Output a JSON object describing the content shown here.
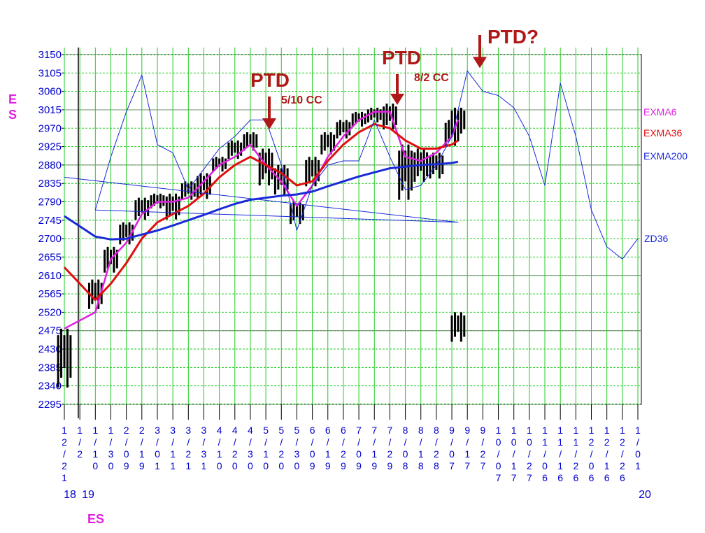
{
  "chart_data": {
    "type": "line",
    "symbol": "ES",
    "y_label": "ES",
    "footer_label": "ES",
    "ylim": [
      2295,
      3150
    ],
    "y_ticks": [
      3150,
      3105,
      3060,
      3015,
      2970,
      2925,
      2880,
      2835,
      2790,
      2745,
      2700,
      2655,
      2610,
      2565,
      2520,
      2475,
      2430,
      2385,
      2340,
      2295
    ],
    "x_ticks": [
      "12/21",
      "1/2",
      "1/10",
      "1/30",
      "2/09",
      "2/19",
      "3/01",
      "3/11",
      "3/21",
      "3/31",
      "4/10",
      "4/20",
      "4/30",
      "5/10",
      "5/20",
      "5/30",
      "6/09",
      "6/19",
      "6/29",
      "7/09",
      "7/19",
      "7/29",
      "8/08",
      "8/18",
      "8/28",
      "9/07",
      "9/17",
      "9/27",
      "10/07",
      "10/17",
      "10/27",
      "11/06",
      "11/16",
      "11/26",
      "12/06",
      "12/16",
      "12/26",
      "1/01"
    ],
    "year_labels": [
      "18",
      "19",
      "20"
    ],
    "grid": true,
    "legend_position": "right",
    "series": [
      {
        "name": "EXMA6",
        "color": "#e020e0",
        "x": [
          "12/21",
          "1/10",
          "1/30",
          "2/09",
          "2/19",
          "3/01",
          "3/11",
          "3/21",
          "3/31",
          "4/10",
          "4/20",
          "4/30",
          "5/10",
          "5/20",
          "5/30",
          "6/09",
          "6/19",
          "6/29",
          "7/09",
          "7/19",
          "7/29",
          "8/08",
          "8/18",
          "8/28",
          "9/07",
          "9/11"
        ],
        "values": [
          2480,
          2520,
          2650,
          2690,
          2760,
          2790,
          2790,
          2800,
          2840,
          2880,
          2900,
          2930,
          2880,
          2840,
          2780,
          2830,
          2900,
          2950,
          2990,
          3010,
          3010,
          2900,
          2890,
          2910,
          2950,
          2990
        ]
      },
      {
        "name": "EXMA36",
        "color": "#e01010",
        "x": [
          "12/21",
          "1/10",
          "1/30",
          "2/09",
          "2/19",
          "3/01",
          "3/11",
          "3/21",
          "3/31",
          "4/10",
          "4/20",
          "4/30",
          "5/10",
          "5/20",
          "5/30",
          "6/09",
          "6/19",
          "6/29",
          "7/09",
          "7/19",
          "7/29",
          "8/08",
          "8/18",
          "8/28",
          "9/07",
          "9/11"
        ],
        "values": [
          2630,
          2550,
          2590,
          2640,
          2700,
          2740,
          2760,
          2780,
          2810,
          2850,
          2880,
          2900,
          2880,
          2860,
          2830,
          2840,
          2890,
          2930,
          2960,
          2980,
          2970,
          2940,
          2920,
          2920,
          2930,
          2940
        ]
      },
      {
        "name": "EXMA200",
        "color": "#1a2ad8",
        "x": [
          "12/21",
          "1/10",
          "1/30",
          "2/09",
          "2/19",
          "3/01",
          "3/11",
          "3/21",
          "3/31",
          "4/10",
          "4/20",
          "4/30",
          "5/10",
          "5/20",
          "5/30",
          "6/09",
          "6/19",
          "6/29",
          "7/09",
          "7/19",
          "7/29",
          "8/08",
          "8/18",
          "8/28",
          "9/07",
          "9/11"
        ],
        "values": [
          2755,
          2705,
          2698,
          2700,
          2710,
          2720,
          2732,
          2745,
          2758,
          2772,
          2785,
          2795,
          2800,
          2805,
          2808,
          2815,
          2828,
          2840,
          2852,
          2862,
          2872,
          2876,
          2880,
          2882,
          2885,
          2888
        ]
      },
      {
        "name": "ZD36",
        "color": "#1a2ad8",
        "x": [
          "12/21",
          "1/02",
          "1/10",
          "1/30",
          "2/09",
          "2/19",
          "3/01",
          "3/11",
          "3/21",
          "3/31",
          "4/10",
          "4/20",
          "4/30",
          "5/10",
          "5/20",
          "5/30",
          "6/09",
          "6/19",
          "6/29",
          "7/09",
          "7/19",
          "7/29",
          "8/08",
          "8/18",
          "8/28",
          "9/07",
          "9/17",
          "9/27",
          "10/07",
          "10/17",
          "10/27",
          "11/06",
          "11/16",
          "11/26",
          "12/06",
          "12/16",
          "12/26",
          "1/01"
        ],
        "values": [
          2850,
          2740,
          2770,
          2900,
          3010,
          3100,
          2930,
          2910,
          2820,
          2870,
          2920,
          2950,
          2990,
          2990,
          2880,
          2720,
          2830,
          2880,
          2890,
          2890,
          2990,
          2900,
          2820,
          2830,
          2880,
          2950,
          3110,
          3060,
          3050,
          3020,
          2950,
          2830,
          3080,
          2950,
          2770,
          2680,
          2650,
          2700
        ]
      }
    ],
    "price_bars": [
      {
        "x": "12/21",
        "low": 2320,
        "high": 2480
      },
      {
        "x": "1/02",
        "low": 2440,
        "high": 2520
      },
      {
        "x": "1/10",
        "low": 2520,
        "high": 2600
      },
      {
        "x": "1/30",
        "low": 2610,
        "high": 2680
      },
      {
        "x": "2/09",
        "low": 2680,
        "high": 2740
      },
      {
        "x": "2/19",
        "low": 2740,
        "high": 2800
      },
      {
        "x": "3/01",
        "low": 2770,
        "high": 2810
      },
      {
        "x": "3/11",
        "low": 2740,
        "high": 2810
      },
      {
        "x": "3/21",
        "low": 2790,
        "high": 2840
      },
      {
        "x": "3/31",
        "low": 2790,
        "high": 2860
      },
      {
        "x": "4/10",
        "low": 2860,
        "high": 2900
      },
      {
        "x": "4/20",
        "low": 2890,
        "high": 2940
      },
      {
        "x": "4/30",
        "low": 2910,
        "high": 2960
      },
      {
        "x": "5/10",
        "low": 2820,
        "high": 2920
      },
      {
        "x": "5/20",
        "low": 2800,
        "high": 2880
      },
      {
        "x": "5/30",
        "low": 2730,
        "high": 2790
      },
      {
        "x": "6/09",
        "low": 2820,
        "high": 2900
      },
      {
        "x": "6/19",
        "low": 2900,
        "high": 2960
      },
      {
        "x": "6/29",
        "low": 2940,
        "high": 2990
      },
      {
        "x": "7/09",
        "low": 2970,
        "high": 3010
      },
      {
        "x": "7/19",
        "low": 2980,
        "high": 3020
      },
      {
        "x": "7/29",
        "low": 2960,
        "high": 3030
      },
      {
        "x": "8/08",
        "low": 2780,
        "high": 2930
      },
      {
        "x": "8/18",
        "low": 2830,
        "high": 2920
      },
      {
        "x": "8/28",
        "low": 2840,
        "high": 2910
      },
      {
        "x": "9/07",
        "low": 2920,
        "high": 2990
      },
      {
        "x": "9/11",
        "low": 2950,
        "high": 3020
      }
    ],
    "annotations": [
      {
        "text": "PTD",
        "secondary": "5/10 CC",
        "x": "4/30",
        "arrow_to": 2960
      },
      {
        "text": "PTD",
        "secondary": "8/2 CC",
        "x": "7/29",
        "arrow_to": 3020
      },
      {
        "text": "PTD?",
        "secondary": "",
        "x": "9/17",
        "arrow_to": 3110
      }
    ],
    "legend": [
      "EXMA6",
      "EXMA36",
      "EXMA200"
    ],
    "right_label": "ZD36"
  }
}
